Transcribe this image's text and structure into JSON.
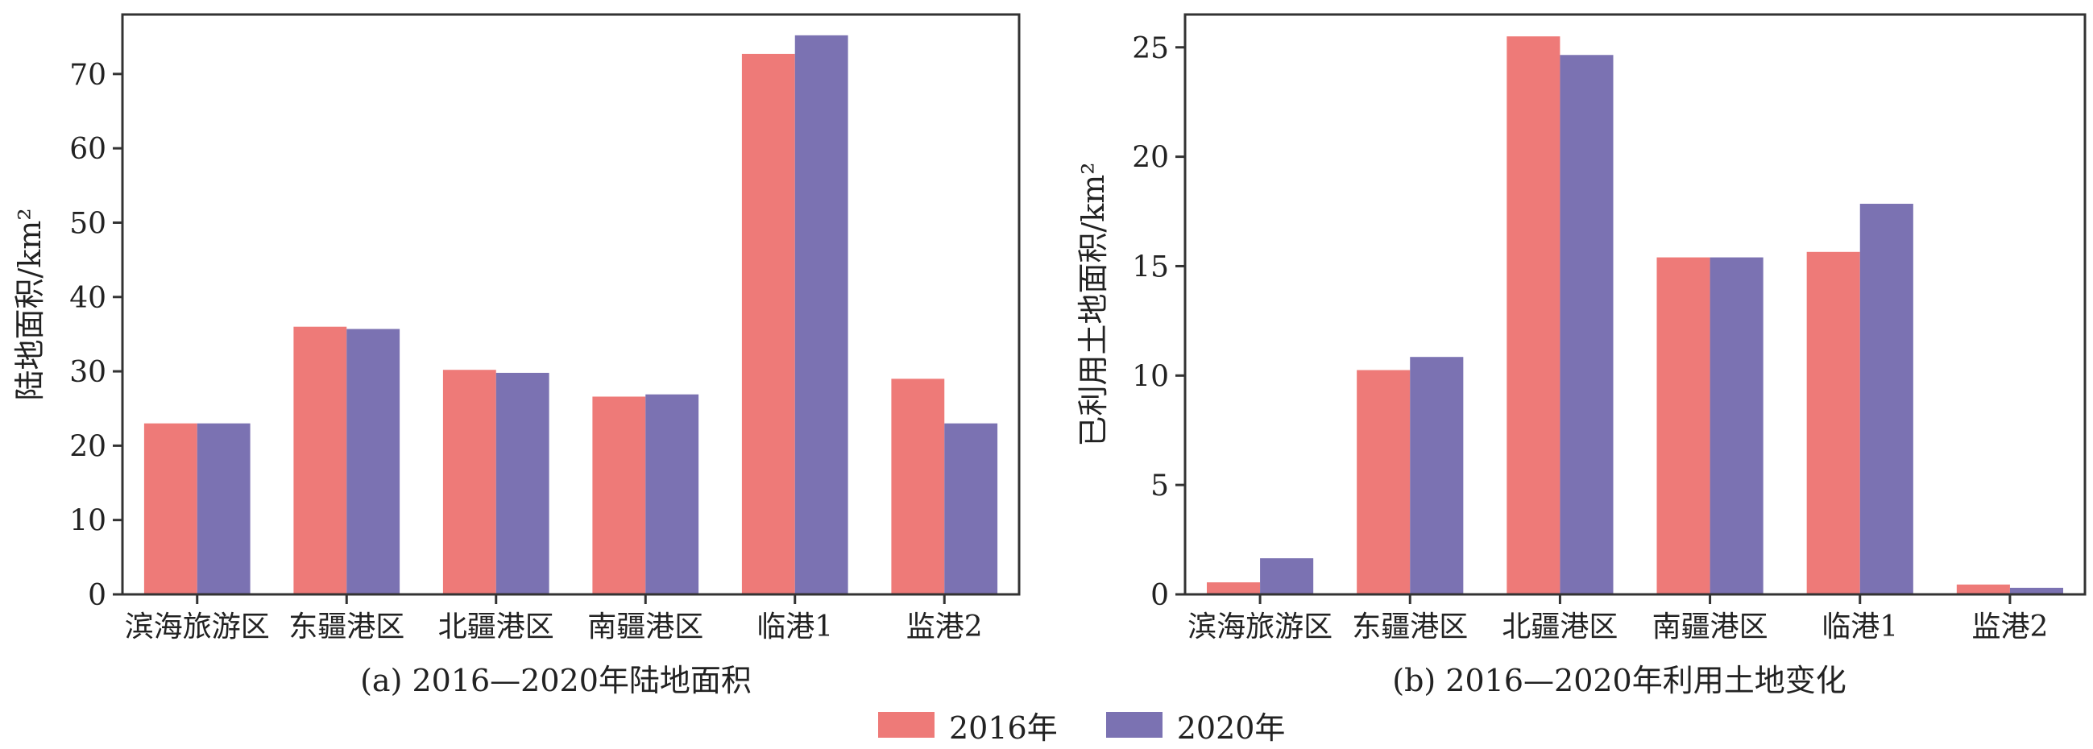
{
  "chart_data": [
    {
      "type": "bar",
      "id": "a",
      "caption": "(a) 2016—2020年陆地面积",
      "ylabel": "陆地面积/km²",
      "ylim": [
        0,
        78
      ],
      "yticks": [
        0,
        10,
        20,
        30,
        40,
        50,
        60,
        70
      ],
      "categories": [
        "滨海旅游区",
        "东疆港区",
        "北疆港区",
        "南疆港区",
        "临港1",
        "监港2"
      ],
      "series": [
        {
          "name": "2016年",
          "values": [
            23,
            36,
            30.2,
            26.6,
            72.7,
            29
          ]
        },
        {
          "name": "2020年",
          "values": [
            23,
            35.7,
            29.8,
            26.9,
            75.2,
            23
          ]
        }
      ]
    },
    {
      "type": "bar",
      "id": "b",
      "caption": "(b) 2016—2020年利用土地变化",
      "ylabel": "已利用土地面积/km²",
      "ylim": [
        0,
        26.5
      ],
      "yticks": [
        0,
        5,
        10,
        15,
        20,
        25
      ],
      "categories": [
        "滨海旅游区",
        "东疆港区",
        "北疆港区",
        "南疆港区",
        "临港1",
        "监港2"
      ],
      "series": [
        {
          "name": "2016年",
          "values": [
            0.55,
            10.25,
            25.5,
            15.4,
            15.65,
            0.45
          ]
        },
        {
          "name": "2020年",
          "values": [
            1.65,
            10.85,
            24.65,
            15.4,
            17.85,
            0.3
          ]
        }
      ]
    }
  ],
  "legend": [
    {
      "label": "2016年",
      "color": "#ee7a78"
    },
    {
      "label": "2020年",
      "color": "#7b72b2"
    }
  ],
  "colors": {
    "series2016": "#ee7a78",
    "series2020": "#7b72b2",
    "axis": "#333333"
  }
}
